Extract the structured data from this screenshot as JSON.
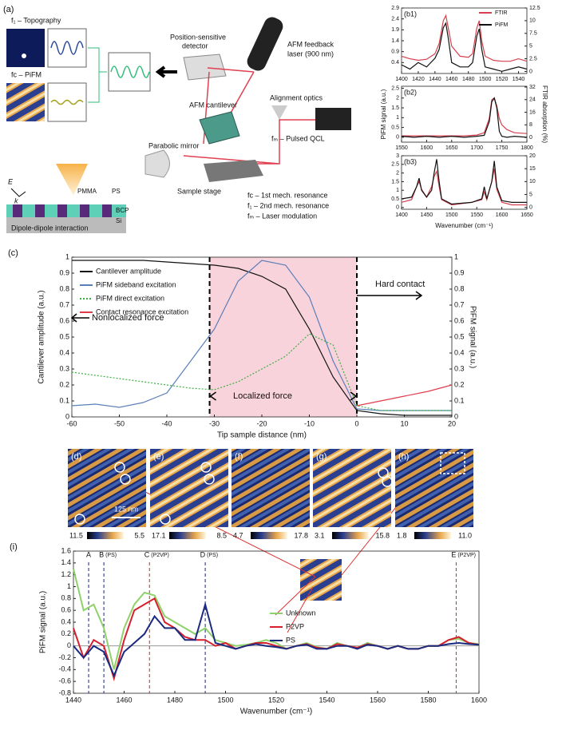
{
  "panel_a": {
    "label": "(a)",
    "topography": "f₁ – Topography",
    "pifm": "fc – PiFM",
    "detector": [
      "Position-sensitive",
      "detector"
    ],
    "laser": [
      "AFM feedback",
      "laser (900 nm)"
    ],
    "alignment": "Alignment optics",
    "cantilever": "AFM cantilever",
    "mirror": "Parabolic mirror",
    "qcl": "fₘ – Pulsed QCL",
    "stage": "Sample stage",
    "legend": [
      "fc – 1st mech. resonance",
      "f₁ – 2nd mech. resonance",
      "fₘ – Laser modulation"
    ],
    "e": "E",
    "k": "k",
    "pmma": "PMMA",
    "ps": "PS",
    "bcp": "BCP",
    "si": "Si",
    "dipole": "Dipole-dipole interaction"
  },
  "chart_data": [
    {
      "type": "line",
      "label": "(b1)",
      "x": [
        1400,
        1410,
        1420,
        1430,
        1440,
        1445,
        1450,
        1453,
        1456,
        1460,
        1470,
        1480,
        1485,
        1490,
        1493,
        1496,
        1500,
        1510,
        1520,
        1530,
        1540,
        1550
      ],
      "xlim": [
        1400,
        1550
      ],
      "xticks": [
        1400,
        1420,
        1440,
        1460,
        1480,
        1500,
        1520,
        1540
      ],
      "ylim": [
        -0.1,
        2.9
      ],
      "yticks": [
        0.4,
        0.9,
        1.4,
        1.9,
        2.4,
        2.9
      ],
      "y2lim": [
        -0.4,
        12.5
      ],
      "y2ticks": [
        0,
        2.5,
        5,
        7.5,
        10,
        12.5
      ],
      "legend": "upper right",
      "series": [
        {
          "name": "FTIR",
          "color": "#d6404e",
          "axis": "y2",
          "values": [
            3.0,
            2.5,
            2.2,
            2.4,
            3.5,
            5.5,
            10.0,
            11.0,
            8.5,
            5.0,
            3.0,
            2.8,
            3.5,
            8.5,
            10.0,
            6.0,
            3.0,
            2.2,
            2.0,
            2.0,
            2.5,
            2.0
          ]
        },
        {
          "name": "PiFM",
          "color": "#111111",
          "values": [
            0.3,
            0.1,
            0.4,
            0.2,
            0.6,
            1.0,
            2.0,
            2.2,
            1.5,
            0.4,
            0.2,
            0.2,
            0.4,
            1.6,
            1.95,
            1.0,
            0.2,
            0.1,
            0.0,
            0.1,
            0.2,
            0.1
          ]
        }
      ]
    },
    {
      "type": "line",
      "label": "(b2)",
      "ylabel": "PiFM signal (a.u.)",
      "y2label": "FTIR absorption (%)",
      "x": [
        1550,
        1575,
        1600,
        1625,
        1650,
        1675,
        1700,
        1715,
        1725,
        1730,
        1735,
        1740,
        1745,
        1750,
        1760,
        1775,
        1800
      ],
      "xlim": [
        1550,
        1800
      ],
      "xticks": [
        1550,
        1600,
        1650,
        1700,
        1750,
        1800
      ],
      "ylim": [
        -0.25,
        2.6
      ],
      "yticks": [
        0,
        0.5,
        1,
        1.5,
        2,
        2.5
      ],
      "y2lim": [
        -3,
        32.5
      ],
      "y2ticks": [
        0,
        8,
        16,
        24,
        32
      ],
      "series": [
        {
          "color": "#d6404e",
          "axis": "y2",
          "values": [
            1,
            1,
            1,
            1,
            1,
            1,
            1.5,
            3,
            12,
            24,
            25,
            20,
            12,
            8,
            5,
            3,
            2.5
          ]
        },
        {
          "color": "#111111",
          "values": [
            0.05,
            0,
            0.05,
            0,
            0.05,
            0,
            0.05,
            0.1,
            0.8,
            1.8,
            2.0,
            1.5,
            0.3,
            0.05,
            0,
            0.05,
            0
          ]
        }
      ]
    },
    {
      "type": "line",
      "label": "(b3)",
      "xlabel": "Wavenumber (cm⁻¹)",
      "x": [
        1400,
        1420,
        1430,
        1435,
        1440,
        1450,
        1460,
        1465,
        1470,
        1475,
        1480,
        1500,
        1540,
        1560,
        1565,
        1570,
        1580,
        1585,
        1590,
        1600,
        1620,
        1650
      ],
      "xlim": [
        1400,
        1650
      ],
      "xticks": [
        1400,
        1450,
        1500,
        1550,
        1600,
        1650
      ],
      "ylim": [
        -0.1,
        3
      ],
      "yticks": [
        0,
        0.5,
        1,
        1.5,
        2,
        2.5,
        3
      ],
      "y2lim": [
        -0.7,
        20
      ],
      "y2ticks": [
        0,
        5,
        10,
        15,
        20
      ],
      "series": [
        {
          "color": "#d6404e",
          "axis": "y2",
          "values": [
            2,
            3,
            8,
            10,
            7,
            4,
            8,
            12,
            14,
            8,
            3,
            1,
            2,
            3,
            6,
            3,
            10,
            15,
            7,
            2,
            1,
            1
          ]
        },
        {
          "color": "#111111",
          "values": [
            0.5,
            0.6,
            1.2,
            1.7,
            1.0,
            0.6,
            1.0,
            2.0,
            2.8,
            1.5,
            0.5,
            0.2,
            0.3,
            0.5,
            1.2,
            0.5,
            1.5,
            2.7,
            1.2,
            0.4,
            0.3,
            0.3
          ]
        }
      ]
    },
    {
      "type": "line",
      "label": "(c)",
      "xlabel": "Tip sample distance (nm)",
      "ylabel": "Cantilever amplitude (a.u.)",
      "y2label": "PiFM signal (a.u.)",
      "x": [
        -60,
        -55,
        -50,
        -45,
        -40,
        -35,
        -30,
        -25,
        -20,
        -15,
        -10,
        -5,
        0,
        5,
        10,
        15,
        20
      ],
      "xlim": [
        -60,
        20
      ],
      "xticks": [
        -60,
        -50,
        -40,
        -30,
        -20,
        -10,
        0,
        10,
        20
      ],
      "ylim": [
        0,
        1
      ],
      "yticks": [
        0,
        0.1,
        0.2,
        0.3,
        0.4,
        0.5,
        0.6,
        0.7,
        0.8,
        0.9,
        1
      ],
      "y2lim": [
        0,
        1
      ],
      "y2ticks": [
        0,
        0.1,
        0.2,
        0.3,
        0.4,
        0.5,
        0.6,
        0.7,
        0.8,
        0.9,
        1
      ],
      "shade": [
        -31,
        0
      ],
      "legend": "upper left",
      "annotations": [
        "Nonlocalized force",
        "Localized force",
        "Hard contact"
      ],
      "series": [
        {
          "name": "Cantilever amplitude",
          "color": "#111111",
          "values": [
            0.98,
            0.98,
            0.98,
            0.98,
            0.97,
            0.96,
            0.95,
            0.93,
            0.88,
            0.8,
            0.55,
            0.25,
            0.04,
            0.02,
            0.01,
            0.01,
            0.01
          ]
        },
        {
          "name": "PiFM sideband excitation",
          "color": "#5b7fb8",
          "axis": "y2",
          "values": [
            0.07,
            0.08,
            0.06,
            0.09,
            0.15,
            0.35,
            0.55,
            0.85,
            0.98,
            0.95,
            0.75,
            0.35,
            0.05,
            0.04,
            0.04,
            0.04,
            0.04
          ]
        },
        {
          "name": "PiFM direct excitation",
          "color": "#3cb043",
          "axis": "y2",
          "style": "dotted",
          "values": [
            0.28,
            0.26,
            0.24,
            0.22,
            0.2,
            0.18,
            0.17,
            0.22,
            0.3,
            0.38,
            0.52,
            0.45,
            0.07,
            0.04,
            0.04,
            0.04,
            0.04
          ]
        },
        {
          "name": "Contact resonance excitation",
          "color": "#e03c4c",
          "axis": "y2",
          "values": [
            null,
            null,
            null,
            null,
            null,
            null,
            null,
            null,
            null,
            null,
            null,
            null,
            0.07,
            0.1,
            0.13,
            0.16,
            0.2
          ]
        }
      ]
    },
    {
      "type": "line",
      "label": "(i)",
      "xlabel": "Wavenumber (cm⁻¹)",
      "ylabel": "PiFM signal (a.u.)",
      "x": [
        1440,
        1444,
        1448,
        1452,
        1456,
        1460,
        1464,
        1468,
        1472,
        1476,
        1480,
        1484,
        1488,
        1492,
        1496,
        1500,
        1504,
        1508,
        1512,
        1516,
        1520,
        1524,
        1528,
        1532,
        1536,
        1540,
        1544,
        1548,
        1552,
        1556,
        1560,
        1564,
        1568,
        1572,
        1576,
        1580,
        1584,
        1588,
        1592,
        1596,
        1600
      ],
      "xlim": [
        1440,
        1600
      ],
      "xticks": [
        1440,
        1460,
        1480,
        1500,
        1520,
        1540,
        1560,
        1580,
        1600
      ],
      "ylim": [
        -0.8,
        1.6
      ],
      "yticks": [
        -0.8,
        -0.6,
        -0.4,
        -0.2,
        0,
        0.2,
        0.4,
        0.6,
        0.8,
        1,
        1.2,
        1.4,
        1.6
      ],
      "reference_line": 0,
      "legend": "upper center",
      "markers": [
        {
          "x": 1446,
          "label": "A",
          "color": "#1a237e"
        },
        {
          "x": 1452,
          "label": "B",
          "note": "(PS)",
          "color": "#1a237e"
        },
        {
          "x": 1470,
          "label": "C",
          "note": "(P2VP)",
          "color": "#c62828"
        },
        {
          "x": 1492,
          "label": "D",
          "note": "(PS)",
          "color": "#1a237e"
        },
        {
          "x": 1591,
          "label": "E",
          "note": "(P2VP)",
          "color": "#c62828"
        }
      ],
      "series": [
        {
          "name": "Unknown",
          "color": "#8fd16a",
          "values": [
            1.3,
            0.6,
            0.7,
            0.3,
            -0.4,
            0.3,
            0.7,
            0.9,
            0.85,
            0.5,
            0.4,
            0.3,
            0.2,
            0.3,
            0.1,
            0.05,
            0,
            0.02,
            0.05,
            0.1,
            0.05,
            -0.05,
            0,
            0.05,
            -0.02,
            -0.05,
            0.05,
            0,
            -0.03,
            0.05,
            0,
            -0.05,
            0,
            -0.05,
            -0.05,
            0,
            0,
            0.1,
            0.12,
            0.05,
            0.03
          ]
        },
        {
          "name": "P2VP",
          "color": "#d6202e",
          "values": [
            0.3,
            -0.2,
            0.1,
            0,
            -0.55,
            0.1,
            0.6,
            0.7,
            0.8,
            0.4,
            0.3,
            0.15,
            0.1,
            0.1,
            0,
            0.05,
            -0.05,
            0,
            0.05,
            0.05,
            0,
            -0.05,
            0,
            0.03,
            -0.03,
            -0.05,
            0.03,
            0,
            -0.03,
            0.03,
            0,
            -0.05,
            0,
            -0.05,
            -0.05,
            0,
            0,
            0.1,
            0.15,
            0.05,
            0.02
          ]
        },
        {
          "name": "PS",
          "color": "#1a2a80",
          "values": [
            0,
            -0.2,
            0,
            -0.1,
            -0.5,
            -0.1,
            0.05,
            0.2,
            0.5,
            0.3,
            0.3,
            0.1,
            0.1,
            0.7,
            0.05,
            0,
            -0.05,
            0,
            0.03,
            0,
            -0.02,
            -0.05,
            0,
            0.02,
            -0.05,
            -0.05,
            0,
            0,
            -0.05,
            0.02,
            0,
            -0.05,
            0,
            -0.05,
            -0.05,
            0,
            0,
            0.03,
            0.05,
            0.03,
            0.02
          ]
        }
      ]
    }
  ],
  "images": {
    "scale_bar": "125 nm",
    "panels": [
      {
        "label": "(d)",
        "cbar": [
          "11.5",
          "5.5"
        ]
      },
      {
        "label": "(e)",
        "cbar": [
          "17.1",
          "8.5"
        ]
      },
      {
        "label": "(f)",
        "cbar": [
          "4.7",
          "17.8"
        ]
      },
      {
        "label": "(g)",
        "cbar": [
          "3.1",
          "15.8"
        ]
      },
      {
        "label": "(h)",
        "cbar": [
          "1.8",
          "11.0"
        ]
      }
    ]
  }
}
